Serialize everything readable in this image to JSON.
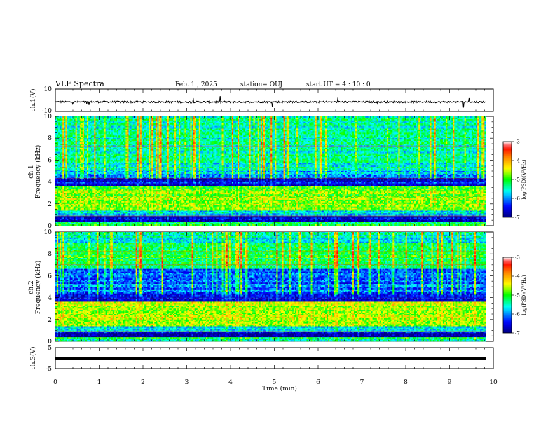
{
  "header": {
    "title": "VLF Spectra",
    "date": "Feb. 1 , 2025",
    "station": "station= OUJ",
    "start": "start UT = 4 : 10 : 0"
  },
  "chart_data": [
    {
      "type": "line",
      "name": "ch1-waveform",
      "ylabel": "ch.1(V)",
      "ylim": [
        -10,
        10
      ],
      "ytick_labels": [
        "10",
        "-10"
      ],
      "xlim": [
        0,
        10
      ],
      "approx_level": -1.5,
      "noise_amplitude": 0.8
    },
    {
      "type": "heatmap",
      "name": "ch1-spectrogram",
      "ylabel_line1": "ch.1",
      "ylabel_line2": "Frequency (kHz)",
      "ylim": [
        0,
        10
      ],
      "ytick_labels": [
        "0",
        "2",
        "4",
        "6",
        "8",
        "10"
      ],
      "xlim": [
        0,
        9.8
      ],
      "colorscale": [
        "#00007f",
        "#0000ff",
        "#00ffff",
        "#00ff00",
        "#ffff00",
        "#ff8000",
        "#ff0000",
        "#ffffff"
      ],
      "colorbar": {
        "label": "log(PSD)(V²/Hz)",
        "range": [
          -7,
          -3
        ],
        "tick_labels": [
          "-3",
          "-4",
          "-5",
          "-6",
          "-7"
        ]
      }
    },
    {
      "type": "heatmap",
      "name": "ch2-spectrogram",
      "ylabel_line1": "ch.2",
      "ylabel_line2": "Frequency (kHz)",
      "ylim": [
        0,
        10
      ],
      "ytick_labels": [
        "0",
        "2",
        "4",
        "6",
        "8",
        "10"
      ],
      "xlim": [
        0,
        9.8
      ],
      "colorscale": [
        "#00007f",
        "#0000ff",
        "#00ffff",
        "#00ff00",
        "#ffff00",
        "#ff8000",
        "#ff0000",
        "#ffffff"
      ],
      "colorbar": {
        "label": "log(PSD)(V²/Hz)",
        "range": [
          -7,
          -3
        ],
        "tick_labels": [
          "-3",
          "-4",
          "-5",
          "-6",
          "-7"
        ]
      }
    },
    {
      "type": "line",
      "name": "ch3-waveform",
      "ylabel": "ch.3(V)",
      "ylim": [
        -5,
        5
      ],
      "ytick_labels": [
        "5",
        "-5"
      ],
      "xlim": [
        0,
        10
      ],
      "approx_level": -0.5
    }
  ],
  "xaxis": {
    "label": "Time (min)",
    "tick_labels": [
      "0",
      "1",
      "2",
      "3",
      "4",
      "5",
      "6",
      "7",
      "8",
      "9",
      "10"
    ],
    "range": [
      0,
      10
    ]
  }
}
